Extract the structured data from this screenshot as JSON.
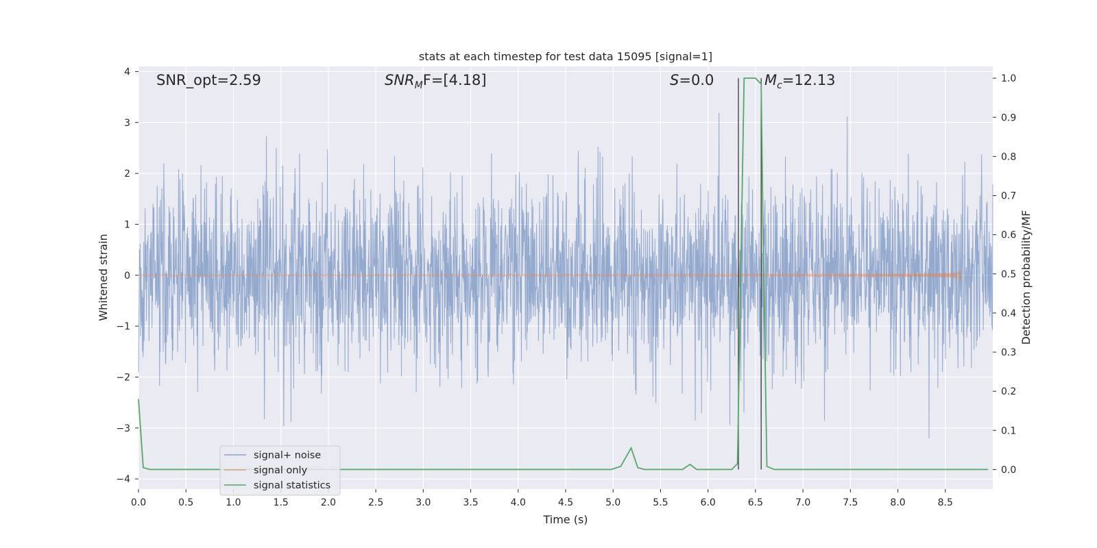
{
  "chart_data": {
    "type": "line",
    "title": "stats at each timestep for test data 15095 [signal=1]",
    "xlabel": "Time (s)",
    "ylabel": "Whitened strain",
    "y2label": "Detection probability/MF",
    "xlim": [
      0.0,
      9.0
    ],
    "ylim": [
      -4.2,
      4.1
    ],
    "y2lim": [
      -0.05,
      1.03
    ],
    "x_ticks": [
      "0.0",
      "0.5",
      "1.0",
      "1.5",
      "2.0",
      "2.5",
      "3.0",
      "3.5",
      "4.0",
      "4.5",
      "5.0",
      "5.5",
      "6.0",
      "6.5",
      "7.0",
      "7.5",
      "8.0",
      "8.5"
    ],
    "y_ticks": [
      "4",
      "3",
      "2",
      "1",
      "0",
      "−1",
      "−2",
      "−3",
      "−4"
    ],
    "y2_ticks": [
      "1.0",
      "0.9",
      "0.8",
      "0.7",
      "0.6",
      "0.5",
      "0.4",
      "0.3",
      "0.2",
      "0.1",
      "0.0"
    ],
    "grid": true,
    "legend_position": "lower-left",
    "annotations": {
      "snr_opt": "SNR_opt=2.59",
      "snr_mf_base": "SNR",
      "snr_mf_sub": "M",
      "snr_mf_rest": "F=[4.18]",
      "s_sym": "S",
      "s_rest": "=0.0",
      "mc_sym": "M",
      "mc_sub": "c",
      "mc_rest": "=12.13"
    },
    "vlines_x": [
      6.32,
      6.56
    ],
    "series": [
      {
        "name": "signal+ noise",
        "color": "#4c72b0",
        "axis": "left",
        "kind": "noise",
        "std": 0.9,
        "x_end": 9.0
      },
      {
        "name": "signal only",
        "color": "#dd8452",
        "axis": "left",
        "kind": "chirp",
        "x_end": 8.67,
        "amp_peak": 0.45
      },
      {
        "name": "signal statistics",
        "color": "#55a868",
        "axis": "right",
        "kind": "line",
        "x": [
          0.0,
          0.05,
          0.12,
          4.98,
          5.08,
          5.19,
          5.26,
          5.33,
          5.73,
          5.81,
          5.88,
          5.95,
          6.25,
          6.31,
          6.38,
          6.5,
          6.56,
          6.58,
          6.62,
          6.7,
          8.5,
          8.95
        ],
        "y": [
          0.18,
          0.005,
          0.0,
          0.0,
          0.008,
          0.055,
          0.005,
          0.0,
          0.0,
          0.013,
          0.0,
          0.0,
          0.0,
          0.015,
          1.0,
          1.0,
          0.985,
          0.6,
          0.008,
          0.0,
          0.0,
          0.0
        ]
      }
    ]
  }
}
